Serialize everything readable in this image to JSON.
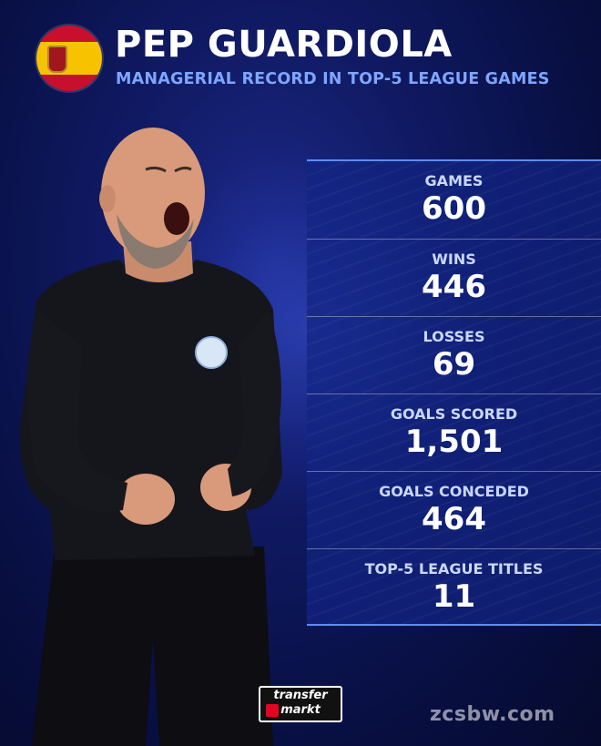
{
  "header": {
    "name": "PEP GUARDIOLA",
    "subtitle": "MANAGERIAL RECORD IN TOP-5 LEAGUE GAMES",
    "flag_icon": "spain-flag-icon"
  },
  "stats": [
    {
      "label": "GAMES",
      "value": "600"
    },
    {
      "label": "WINS",
      "value": "446"
    },
    {
      "label": "LOSSES",
      "value": "69"
    },
    {
      "label": "GOALS SCORED",
      "value": "1,501"
    },
    {
      "label": "GOALS CONCEDED",
      "value": "464"
    },
    {
      "label": "TOP-5 LEAGUE TITLES",
      "value": "11"
    }
  ],
  "footer": {
    "logo_top": "transfer",
    "logo_bottom": "markt",
    "watermark": "zcsbw.com"
  },
  "colors": {
    "background": "#0b1450",
    "accent": "#7ea6ff",
    "panel": "#12248a",
    "flag_red": "#c8102e",
    "flag_yellow": "#f7c300"
  }
}
